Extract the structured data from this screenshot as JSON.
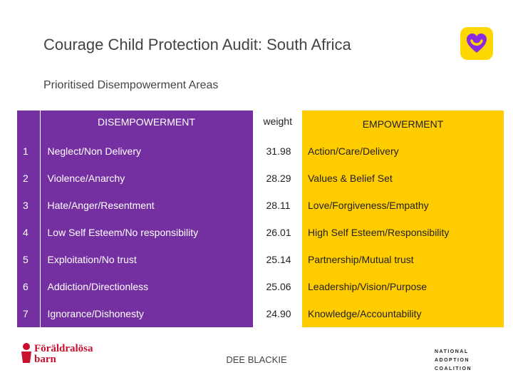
{
  "title": "Courage Child Protection Audit: South Africa",
  "subtitle": "Prioritised Disempowerment Areas",
  "colors": {
    "purple": "#7430a0",
    "yellow": "#ffcc00"
  },
  "table": {
    "headers": {
      "disempowerment": "DISEMPOWERMENT",
      "weight": "weight",
      "empowerment": "EMPOWERMENT"
    },
    "rows": [
      {
        "num": "1",
        "dis": "Neglect/Non Delivery",
        "weight": "31.98",
        "emp": "Action/Care/Delivery"
      },
      {
        "num": "2",
        "dis": "Violence/Anarchy",
        "weight": "28.29",
        "emp": "Values & Belief Set"
      },
      {
        "num": "3",
        "dis": "Hate/Anger/Resentment",
        "weight": "28.11",
        "emp": "Love/Forgiveness/Empathy"
      },
      {
        "num": "4",
        "dis": "Low Self Esteem/No responsibility",
        "weight": "26.01",
        "emp": "High Self Esteem/Responsibility"
      },
      {
        "num": "5",
        "dis": "Exploitation/No trust",
        "weight": "25.14",
        "emp": "Partnership/Mutual trust"
      },
      {
        "num": "6",
        "dis": "Addiction/Directionless",
        "weight": "25.06",
        "emp": "Leadership/Vision/Purpose"
      },
      {
        "num": "7",
        "dis": "Ignorance/Dishonesty",
        "weight": "24.90",
        "emp": "Knowledge/Accountability"
      }
    ]
  },
  "footer": "DEE BLACKIE",
  "logos": {
    "left_brand": [
      "Föräldralösa",
      "barn"
    ],
    "right_brand": [
      "NATIONAL",
      "ADOPTION",
      "COALITION"
    ]
  }
}
